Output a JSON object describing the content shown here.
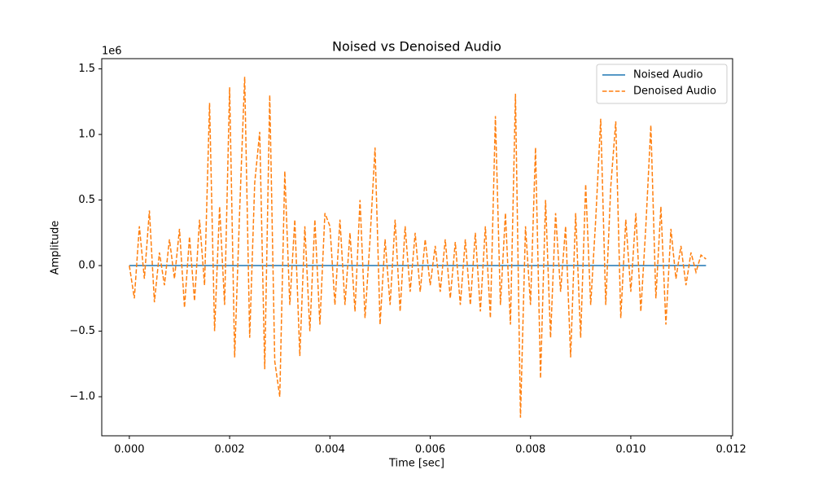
{
  "chart_data": {
    "type": "line",
    "title": "Noised vs Denoised Audio",
    "x_label": "Time [sec]",
    "y_label": "Amplitude",
    "y_offset_label": "1e6",
    "x": [
      0,
      0.0001,
      0.0002,
      0.0003,
      0.0004,
      0.0005,
      0.0006,
      0.0007,
      0.0008,
      0.0009,
      0.001,
      0.0011,
      0.0012,
      0.0013,
      0.0014,
      0.0015,
      0.0016,
      0.0017,
      0.0018,
      0.0019,
      0.002,
      0.0021,
      0.0022,
      0.0023,
      0.0024,
      0.0025,
      0.0026,
      0.0027,
      0.0028,
      0.0029,
      0.003,
      0.0031,
      0.0032,
      0.0033,
      0.0034,
      0.0035,
      0.0036,
      0.0037,
      0.0038,
      0.0039,
      0.004,
      0.0041,
      0.0042,
      0.0043,
      0.0044,
      0.0045,
      0.0046,
      0.0047,
      0.0048,
      0.0049,
      0.005,
      0.0051,
      0.0052,
      0.0053,
      0.0054,
      0.0055,
      0.0056,
      0.0057,
      0.0058,
      0.0059,
      0.006,
      0.0061,
      0.0062,
      0.0063,
      0.0064,
      0.0065,
      0.0066,
      0.0067,
      0.0068,
      0.0069,
      0.007,
      0.0071,
      0.0072,
      0.0073,
      0.0074,
      0.0075,
      0.0076,
      0.0077,
      0.0078,
      0.0079,
      0.008,
      0.0081,
      0.0082,
      0.0083,
      0.0084,
      0.0085,
      0.0086,
      0.0087,
      0.0088,
      0.0089,
      0.009,
      0.0091,
      0.0092,
      0.0093,
      0.0094,
      0.0095,
      0.0096,
      0.0097,
      0.0098,
      0.0099,
      0.01,
      0.0101,
      0.0102,
      0.0103,
      0.0104,
      0.0105,
      0.0106,
      0.0107,
      0.0108,
      0.0109,
      0.011,
      0.0111,
      0.0112,
      0.0113,
      0.0114,
      0.0115
    ],
    "series": [
      {
        "name": "Noised Audio",
        "color": "#1f77b4",
        "dashed": false,
        "values": [
          0,
          0,
          0,
          0,
          0,
          0,
          0,
          0,
          0,
          0,
          0,
          0,
          0,
          0,
          0,
          0,
          0,
          0,
          0,
          0,
          0,
          0,
          0,
          0,
          0,
          0,
          0,
          0,
          0,
          0,
          0,
          0,
          0,
          0,
          0,
          0,
          0,
          0,
          0,
          0,
          0,
          0,
          0,
          0,
          0,
          0,
          0,
          0,
          0,
          0,
          0,
          0,
          0,
          0,
          0,
          0,
          0,
          0,
          0,
          0,
          0,
          0,
          0,
          0,
          0,
          0,
          0,
          0,
          0,
          0,
          0,
          0,
          0,
          0,
          0,
          0,
          0,
          0,
          0,
          0,
          0,
          0,
          0,
          0,
          0,
          0,
          0,
          0,
          0,
          0,
          0,
          0,
          0,
          0,
          0,
          0,
          0,
          0,
          0,
          0,
          0,
          0,
          0,
          0,
          0,
          0,
          0,
          0,
          0,
          0,
          0,
          0,
          0,
          0,
          0,
          0
        ]
      },
      {
        "name": "Denoised Audio",
        "color": "#ff7f0e",
        "dashed": true,
        "values": [
          0,
          -0.25,
          0.3,
          -0.1,
          0.42,
          -0.28,
          0.1,
          -0.15,
          0.2,
          -0.1,
          0.28,
          -0.32,
          0.22,
          -0.27,
          0.35,
          -0.15,
          1.24,
          -0.5,
          0.45,
          -0.3,
          1.36,
          -0.7,
          0.42,
          1.44,
          -0.55,
          0.63,
          1.02,
          -0.79,
          1.3,
          -0.73,
          -1.0,
          0.72,
          -0.3,
          0.35,
          -0.69,
          0.3,
          -0.5,
          0.35,
          -0.45,
          0.4,
          0.3,
          -0.3,
          0.35,
          -0.3,
          0.25,
          -0.35,
          0.5,
          -0.4,
          0.2,
          0.9,
          -0.45,
          0.2,
          -0.3,
          0.35,
          -0.35,
          0.3,
          -0.2,
          0.25,
          -0.2,
          0.2,
          -0.15,
          0.15,
          -0.2,
          0.2,
          -0.25,
          0.18,
          -0.3,
          0.2,
          -0.3,
          0.25,
          -0.35,
          0.3,
          -0.4,
          1.14,
          -0.3,
          0.4,
          -0.45,
          1.31,
          -1.16,
          0.3,
          -0.3,
          0.9,
          -0.86,
          0.5,
          -0.55,
          0.4,
          -0.2,
          0.3,
          -0.7,
          0.4,
          -0.55,
          0.62,
          -0.3,
          0.35,
          1.12,
          -0.3,
          0.6,
          1.1,
          -0.4,
          0.35,
          -0.2,
          0.4,
          -0.35,
          0.3,
          1.07,
          -0.25,
          0.45,
          -0.45,
          0.28,
          -0.1,
          0.15,
          -0.15,
          0.1,
          -0.05,
          0.08,
          0.05
        ]
      }
    ],
    "xlim": [
      -0.00055,
      0.01203
    ],
    "ylim": [
      -1.298,
      1.578
    ],
    "xticks": [
      {
        "value": 0,
        "label": "0.000"
      },
      {
        "value": 0.002,
        "label": "0.002"
      },
      {
        "value": 0.004,
        "label": "0.004"
      },
      {
        "value": 0.006,
        "label": "0.006"
      },
      {
        "value": 0.008,
        "label": "0.008"
      },
      {
        "value": 0.01,
        "label": "0.010"
      },
      {
        "value": 0.012,
        "label": "0.012"
      }
    ],
    "yticks": [
      {
        "value": -1,
        "label": "−1.0"
      },
      {
        "value": -0.5,
        "label": "−0.5"
      },
      {
        "value": 0,
        "label": "0.0"
      },
      0.5,
      {
        "value": 1,
        "label": "1.0"
      },
      1.5
    ],
    "legend": "upper right",
    "grid": false
  }
}
